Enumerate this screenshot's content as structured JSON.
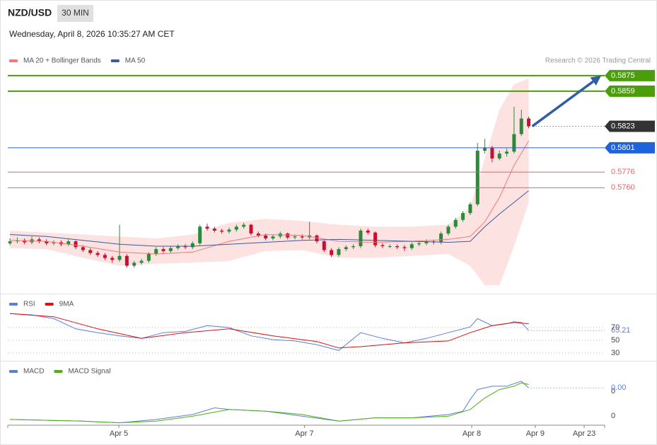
{
  "header": {
    "symbol": "NZD/USD",
    "timeframe": "30 MIN",
    "datetime": "Wednesday, April 8, 2026 10:35:27 AM CET",
    "credit": "Research © 2026 Trading Central"
  },
  "chart_data": [
    {
      "type": "candlestick",
      "up_color": "#2a8a3a",
      "down_color": "#c8102e",
      "arrow_color": "#2f5ea6",
      "xlim": [
        -0.3,
        81.4
      ],
      "ylim": [
        0.5655,
        0.588
      ],
      "ohlc": [
        [
          0.5703,
          0.5708,
          0.5701,
          0.5705
        ],
        [
          0.5705,
          0.5709,
          0.5703,
          0.5706
        ],
        [
          0.5706,
          0.5708,
          0.5702,
          0.5704
        ],
        [
          0.5704,
          0.571,
          0.5702,
          0.5707
        ],
        [
          0.5707,
          0.5709,
          0.5703,
          0.5705
        ],
        [
          0.5705,
          0.5707,
          0.5701,
          0.5703
        ],
        [
          0.5703,
          0.5706,
          0.5701,
          0.5704
        ],
        [
          0.5704,
          0.5706,
          0.57,
          0.5702
        ],
        [
          0.5702,
          0.5707,
          0.57,
          0.5705
        ],
        [
          0.5705,
          0.5706,
          0.5697,
          0.5699
        ],
        [
          0.5699,
          0.5701,
          0.5694,
          0.5696
        ],
        [
          0.5696,
          0.5698,
          0.5691,
          0.5693
        ],
        [
          0.5693,
          0.5695,
          0.5689,
          0.5691
        ],
        [
          0.5691,
          0.5693,
          0.5686,
          0.5688
        ],
        [
          0.5688,
          0.569,
          0.5683,
          0.5686
        ],
        [
          0.5686,
          0.5722,
          0.5684,
          0.569
        ],
        [
          0.569,
          0.5692,
          0.5678,
          0.568
        ],
        [
          0.568,
          0.5685,
          0.5678,
          0.5683
        ],
        [
          0.5683,
          0.5687,
          0.5681,
          0.5685
        ],
        [
          0.5685,
          0.5694,
          0.5683,
          0.5692
        ],
        [
          0.5692,
          0.5699,
          0.569,
          0.5697
        ],
        [
          0.5697,
          0.5699,
          0.5693,
          0.5695
        ],
        [
          0.5695,
          0.57,
          0.5693,
          0.5698
        ],
        [
          0.5698,
          0.5702,
          0.5696,
          0.57
        ],
        [
          0.57,
          0.5702,
          0.5697,
          0.5699
        ],
        [
          0.5699,
          0.5705,
          0.5697,
          0.5703
        ],
        [
          0.5703,
          0.5722,
          0.5701,
          0.572
        ],
        [
          0.572,
          0.5723,
          0.5716,
          0.5718
        ],
        [
          0.5718,
          0.572,
          0.5714,
          0.5716
        ],
        [
          0.5716,
          0.5718,
          0.5713,
          0.5715
        ],
        [
          0.5715,
          0.5719,
          0.5713,
          0.5717
        ],
        [
          0.5717,
          0.5722,
          0.5715,
          0.572
        ],
        [
          0.572,
          0.5724,
          0.5718,
          0.5722
        ],
        [
          0.5722,
          0.5723,
          0.5711,
          0.5713
        ],
        [
          0.5713,
          0.5715,
          0.5709,
          0.5711
        ],
        [
          0.5711,
          0.5713,
          0.5706,
          0.5708
        ],
        [
          0.5708,
          0.5712,
          0.5706,
          0.571
        ],
        [
          0.571,
          0.5715,
          0.5708,
          0.5713
        ],
        [
          0.5713,
          0.5714,
          0.5707,
          0.5709
        ],
        [
          0.5709,
          0.5712,
          0.5707,
          0.571
        ],
        [
          0.571,
          0.5712,
          0.5707,
          0.5709
        ],
        [
          0.5709,
          0.5725,
          0.5707,
          0.5711
        ],
        [
          0.5711,
          0.5712,
          0.5703,
          0.5705
        ],
        [
          0.5705,
          0.5706,
          0.5694,
          0.5696
        ],
        [
          0.5696,
          0.5698,
          0.5689,
          0.5691
        ],
        [
          0.5691,
          0.5699,
          0.5689,
          0.5697
        ],
        [
          0.5697,
          0.5701,
          0.5695,
          0.5699
        ],
        [
          0.5699,
          0.5702,
          0.5697,
          0.57
        ],
        [
          0.57,
          0.5718,
          0.5698,
          0.5716
        ],
        [
          0.5716,
          0.5718,
          0.5712,
          0.5714
        ],
        [
          0.5714,
          0.5715,
          0.5699,
          0.5701
        ],
        [
          0.5701,
          0.5703,
          0.5698,
          0.57
        ],
        [
          0.57,
          0.5702,
          0.5698,
          0.57
        ],
        [
          0.57,
          0.5702,
          0.5697,
          0.5699
        ],
        [
          0.5699,
          0.5701,
          0.5695,
          0.5698
        ],
        [
          0.5698,
          0.5704,
          0.5696,
          0.5702
        ],
        [
          0.5702,
          0.5705,
          0.57,
          0.5703
        ],
        [
          0.5703,
          0.5707,
          0.5701,
          0.5705
        ],
        [
          0.5705,
          0.5706,
          0.5702,
          0.5704
        ],
        [
          0.5704,
          0.5715,
          0.5702,
          0.5713
        ],
        [
          0.5713,
          0.5722,
          0.5711,
          0.572
        ],
        [
          0.572,
          0.5729,
          0.5718,
          0.5727
        ],
        [
          0.5727,
          0.5736,
          0.5725,
          0.5734
        ],
        [
          0.5734,
          0.5745,
          0.5732,
          0.5743
        ],
        [
          0.5743,
          0.5806,
          0.5741,
          0.5798
        ],
        [
          0.5798,
          0.581,
          0.5795,
          0.5801
        ],
        [
          0.5801,
          0.5803,
          0.5786,
          0.579
        ],
        [
          0.579,
          0.5798,
          0.5788,
          0.5795
        ],
        [
          0.5795,
          0.58,
          0.5792,
          0.5797
        ],
        [
          0.5797,
          0.5843,
          0.5795,
          0.5815
        ],
        [
          0.5815,
          0.584,
          0.5813,
          0.5831
        ],
        [
          0.5831,
          0.5833,
          0.5821,
          0.5823
        ]
      ],
      "series": [
        {
          "name": "MA 20 + Bollinger Bands",
          "color": "#f07878",
          "band_color": "#fde2e2",
          "x": [
            0,
            5,
            10,
            15,
            20,
            25,
            30,
            35,
            40,
            45,
            50,
            55,
            60,
            63,
            65,
            67,
            69,
            71
          ],
          "values": [
            0.5706,
            0.5705,
            0.57,
            0.5694,
            0.5692,
            0.5694,
            0.5705,
            0.5712,
            0.5711,
            0.5705,
            0.5704,
            0.5705,
            0.5707,
            0.571,
            0.5725,
            0.575,
            0.5783,
            0.5808
          ],
          "upper": [
            0.5716,
            0.5714,
            0.5712,
            0.571,
            0.5708,
            0.5712,
            0.5724,
            0.5728,
            0.5726,
            0.5722,
            0.572,
            0.572,
            0.5722,
            0.574,
            0.579,
            0.584,
            0.5866,
            0.5872
          ],
          "lower": [
            0.5698,
            0.5697,
            0.5688,
            0.568,
            0.5682,
            0.5683,
            0.5685,
            0.5695,
            0.5696,
            0.5688,
            0.5688,
            0.569,
            0.5692,
            0.568,
            0.566,
            0.566,
            0.57,
            0.5745
          ]
        },
        {
          "name": "MA 50",
          "color": "#3a5b9c",
          "x": [
            0,
            5,
            10,
            15,
            20,
            25,
            30,
            35,
            40,
            45,
            50,
            55,
            60,
            63,
            65,
            67,
            69,
            71
          ],
          "values": [
            0.5712,
            0.571,
            0.5706,
            0.5702,
            0.57,
            0.57,
            0.5702,
            0.5704,
            0.5706,
            0.5707,
            0.5706,
            0.5705,
            0.5704,
            0.5705,
            0.572,
            0.5733,
            0.5745,
            0.5757
          ]
        }
      ],
      "levels": [
        {
          "value": 0.5875,
          "color": "#4a9e0a",
          "tag": true
        },
        {
          "value": 0.5859,
          "color": "#4a9e0a",
          "tag": true
        },
        {
          "value": 0.5823,
          "color": "#333333",
          "tag": true,
          "dotted": true
        },
        {
          "value": 0.5801,
          "color": "#1f63d8",
          "tag": true
        },
        {
          "value": 0.5776,
          "color": "#e06666",
          "tag": false
        },
        {
          "value": 0.576,
          "label": "0.5760",
          "color": "#e06666",
          "tag": false
        }
      ]
    },
    {
      "type": "line",
      "xlim": [
        -0.3,
        81.4
      ],
      "ylim": [
        20,
        110
      ],
      "yticks": [
        30,
        50,
        70
      ],
      "grid": true,
      "series": [
        {
          "name": "RSI",
          "color": "#5b7fd6",
          "x": [
            0,
            3,
            6,
            9,
            12,
            15,
            18,
            21,
            24,
            27,
            30,
            33,
            36,
            39,
            42,
            45,
            48,
            51,
            54,
            57,
            60,
            63,
            64,
            66,
            68,
            69,
            70,
            71
          ],
          "values": [
            92,
            90,
            84,
            68,
            62,
            57,
            53,
            62,
            64,
            73,
            70,
            57,
            51,
            49,
            43,
            34,
            62,
            53,
            46,
            53,
            62,
            71,
            84,
            73,
            76,
            79,
            78,
            65.21
          ]
        },
        {
          "name": "9MA",
          "color": "#e01010",
          "x": [
            0,
            6,
            12,
            18,
            24,
            30,
            36,
            42,
            45,
            48,
            54,
            60,
            63,
            66,
            69,
            71
          ],
          "values": [
            92,
            87,
            68,
            53,
            62,
            68,
            57,
            48,
            38,
            40,
            46,
            49,
            62,
            73,
            78,
            76
          ]
        }
      ]
    },
    {
      "type": "line",
      "xlim": [
        -0.3,
        81.4
      ],
      "ylim": [
        -0.0005,
        0.0029
      ],
      "yticks": [
        0,
        {
          "value": 0.0015,
          "label": "0"
        }
      ],
      "grid": false,
      "current_label": {
        "value": 0.0017,
        "label": "0.00"
      },
      "xticks": [
        {
          "value": 14.9,
          "label": "Apr 5"
        },
        {
          "value": 40.3,
          "label": "Apr 7"
        },
        {
          "value": 63.2,
          "label": "Apr 8"
        },
        {
          "value": 71.9,
          "label": "Apr 9"
        },
        {
          "value": 78.6,
          "label": "Apr 23"
        }
      ],
      "series": [
        {
          "name": "MACD",
          "color": "#5b7fd6",
          "x": [
            0,
            10,
            15,
            20,
            25,
            28,
            30,
            35,
            40,
            45,
            50,
            55,
            60,
            62,
            63,
            64,
            66,
            68,
            70,
            71
          ],
          "values": [
            -0.0002,
            -0.0003,
            -0.0004,
            -0.0002,
            0.0001,
            0.0005,
            0.0004,
            0.0003,
            0,
            -0.0003,
            -0.0001,
            -0.0001,
            0.0001,
            0.0003,
            0.001,
            0.0016,
            0.0018,
            0.0018,
            0.0021,
            0.0017
          ]
        },
        {
          "name": "MACD Signal",
          "color": "#4caf12",
          "x": [
            0,
            10,
            15,
            20,
            25,
            30,
            35,
            40,
            45,
            50,
            55,
            60,
            63,
            65,
            67,
            69,
            70,
            71
          ],
          "values": [
            -0.0002,
            -0.0003,
            -0.0004,
            -0.0003,
            0,
            0.0004,
            0.0003,
            0.0001,
            -0.0003,
            -0.0001,
            -0.0001,
            0,
            0.0004,
            0.0011,
            0.0016,
            0.0018,
            0.002,
            0.0019
          ]
        }
      ]
    }
  ]
}
